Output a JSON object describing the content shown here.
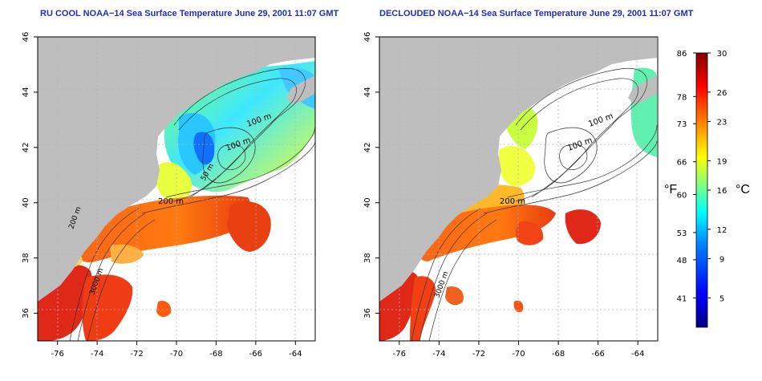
{
  "titles": {
    "left": "RU COOL NOAA−14 Sea Surface Temperature June 29, 2001 11:07 GMT",
    "right": "DECLOUDED NOAA−14 Sea Surface Temperature June 29, 2001 11:07 GMT"
  },
  "maps": {
    "lon_range": [
      -77,
      -63
    ],
    "lat_range": [
      35,
      46
    ],
    "x_ticks": [
      "-76",
      "-74",
      "-72",
      "-70",
      "-68",
      "-66",
      "-64"
    ],
    "y_ticks": [
      "36",
      "38",
      "40",
      "42",
      "44",
      "46"
    ],
    "contour_labels": {
      "m100_a": "100 m",
      "m100_b": "100 m",
      "m50": "50 m",
      "m200": "200 m",
      "m3000_left": "3000 m",
      "m3000_right": "3000 m",
      "left_deep": "200 m"
    },
    "colors": {
      "land": "#bebebe",
      "contour": "#333333",
      "grid": "#b4b4b4"
    }
  },
  "colorbar": {
    "f_label": "°F",
    "c_label": "°C",
    "f_ticks": [
      "86",
      "78",
      "73",
      "66",
      "60",
      "53",
      "48",
      "41"
    ],
    "c_ticks": [
      "30",
      "26",
      "23",
      "19",
      "16",
      "12",
      "9",
      "5"
    ],
    "c_range": [
      2,
      30
    ],
    "gradient": [
      "#00007f",
      "#0000ff",
      "#0080ff",
      "#00ffff",
      "#80ff80",
      "#ffff00",
      "#ff8000",
      "#ff0000",
      "#7f0000"
    ]
  }
}
